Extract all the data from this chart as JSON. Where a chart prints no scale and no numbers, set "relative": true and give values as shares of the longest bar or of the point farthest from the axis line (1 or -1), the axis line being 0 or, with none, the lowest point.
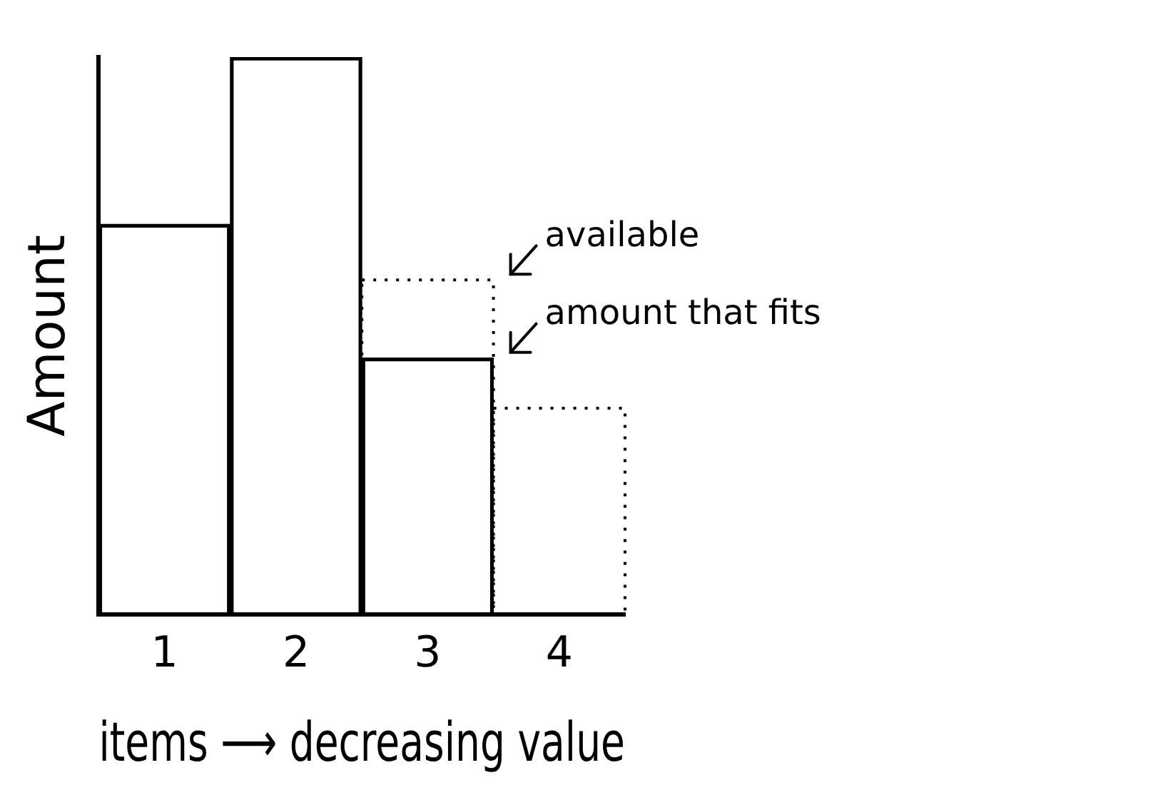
{
  "chart_data": {
    "type": "bar",
    "relative": true,
    "xlabel": "items ⟶ decreasing value",
    "ylabel": "Amount",
    "categories": [
      "1",
      "2",
      "3",
      "4"
    ],
    "series": [
      {
        "name": "amount that fits",
        "color": "#000000",
        "values": [
          0.7,
          1,
          0.46,
          null
        ]
      },
      {
        "name": "available",
        "color": "#000000",
        "line_style": "dotted",
        "values": [
          null,
          null,
          0.6,
          0.37
        ]
      }
    ],
    "grid": false
  }
}
